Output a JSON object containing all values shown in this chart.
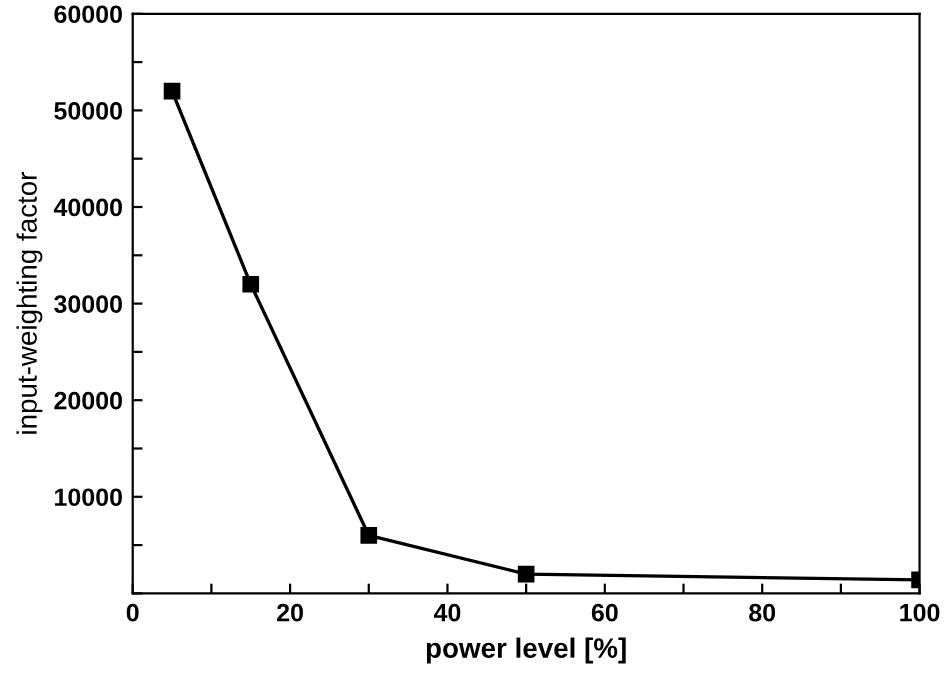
{
  "chart_data": {
    "type": "line",
    "xlabel": "power level [%]",
    "ylabel": "input-weighting factor",
    "x": [
      5,
      15,
      30,
      50,
      100
    ],
    "series": [
      {
        "color": "#000000",
        "values": [
          52000,
          32000,
          6000,
          2000,
          1400
        ]
      }
    ],
    "marker": "square",
    "line_style": "solid",
    "grid": false,
    "legend": false,
    "xlim": [
      0,
      100
    ],
    "ylim": [
      0,
      60000
    ],
    "xticks": [
      0,
      {
        "value": 10,
        "label": null
      },
      20,
      {
        "value": 30,
        "label": null
      },
      40,
      {
        "value": 50,
        "label": null
      },
      60,
      {
        "value": 70,
        "label": null
      },
      80,
      {
        "value": 90,
        "label": null
      },
      100
    ],
    "yticks": [
      {
        "value": 0,
        "label": null
      },
      {
        "value": 5000,
        "label": null
      },
      10000,
      {
        "value": 15000,
        "label": null
      },
      20000,
      {
        "value": 25000,
        "label": null
      },
      30000,
      {
        "value": 35000,
        "label": null
      },
      40000,
      {
        "value": 45000,
        "label": null
      },
      50000,
      {
        "value": 55000,
        "label": null
      },
      60000
    ]
  }
}
